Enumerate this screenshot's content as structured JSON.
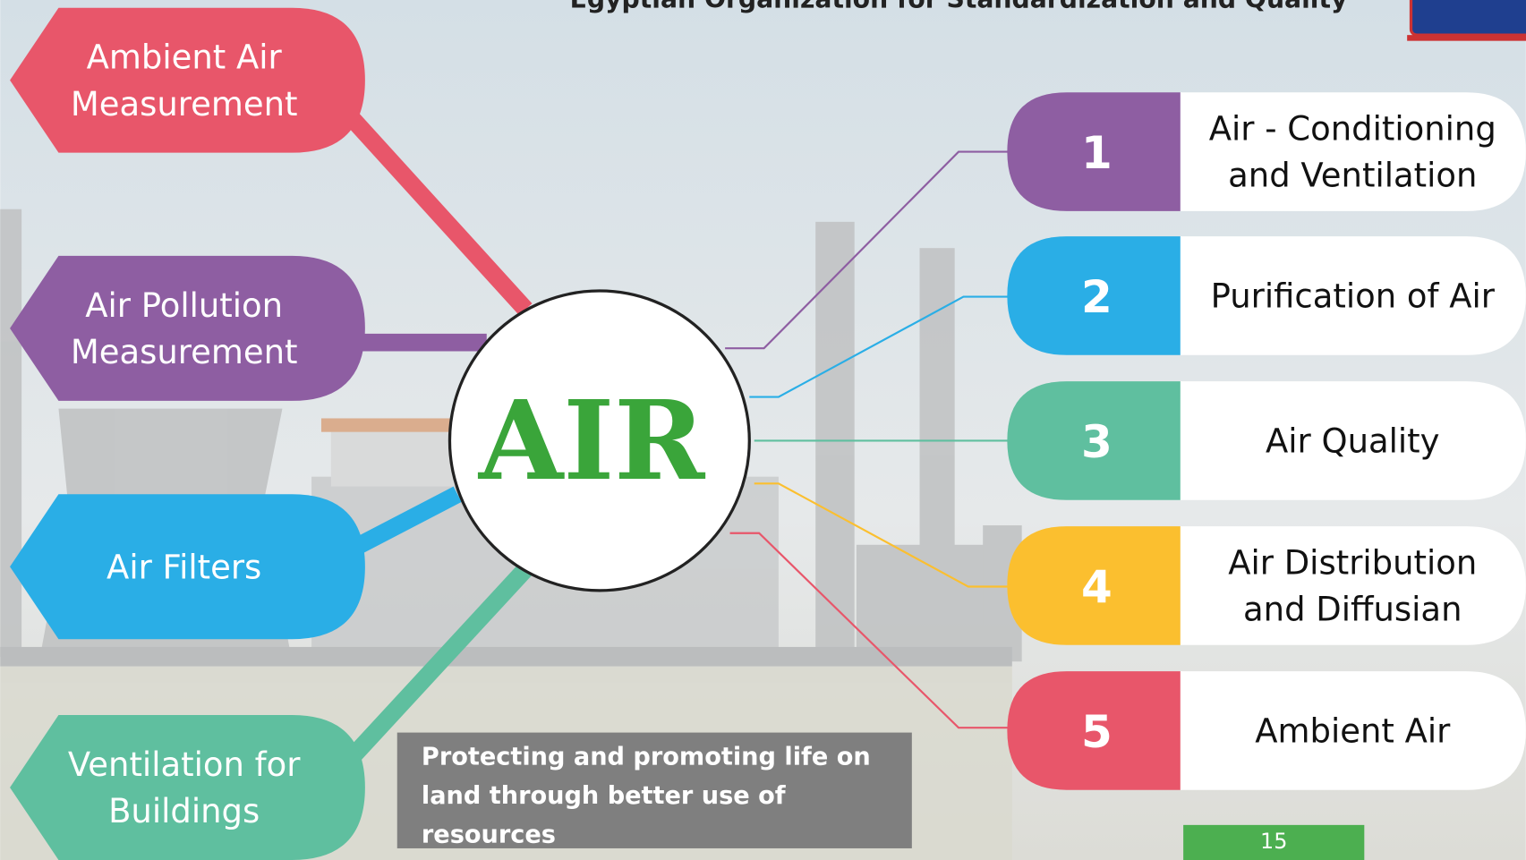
{
  "header": {
    "title": "Egyptian Organization for Standardization and Quality"
  },
  "hub": {
    "label": "AIR"
  },
  "left_nodes": [
    {
      "label": [
        "Ambient Air",
        "Measurement"
      ],
      "color": "#e8566a"
    },
    {
      "label": [
        "Air Pollution",
        "Measurement"
      ],
      "color": "#8e5ea2"
    },
    {
      "label": [
        "Air Filters"
      ],
      "color": "#2aaee6"
    },
    {
      "label": [
        "Ventilation for",
        "Buildings"
      ],
      "color": "#5fbf9f"
    }
  ],
  "right_items": [
    {
      "number": "1",
      "label": [
        "Air - Conditioning",
        "and Ventilation"
      ],
      "color": "#8e5ea2"
    },
    {
      "number": "2",
      "label": [
        "Purification of Air"
      ],
      "color": "#2aaee6"
    },
    {
      "number": "3",
      "label": [
        "Air Quality"
      ],
      "color": "#5fbf9f"
    },
    {
      "number": "4",
      "label": [
        "Air Distribution",
        "and Diffusian"
      ],
      "color": "#fbbf2f"
    },
    {
      "number": "5",
      "label": [
        "Ambient Air"
      ],
      "color": "#e8566a"
    }
  ],
  "caption": [
    "Protecting and promoting life on",
    "land through better use of",
    "resources"
  ],
  "page_number": "15"
}
